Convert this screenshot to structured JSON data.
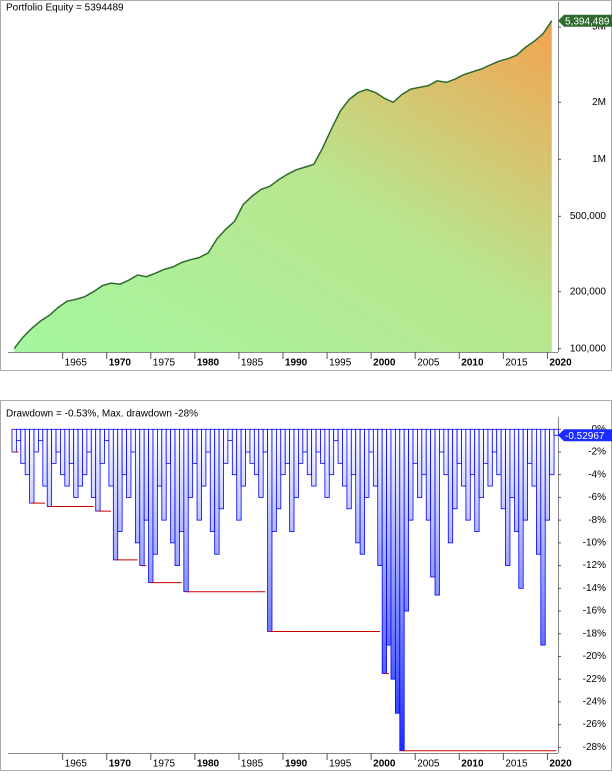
{
  "chart_data": [
    {
      "type": "area",
      "title": "Portfolio Equity = 5394489",
      "x": [
        1959.5,
        1960.5,
        1961.5,
        1962.5,
        1963.5,
        1964.5,
        1965.5,
        1966.5,
        1967.5,
        1968.5,
        1969.5,
        1970.5,
        1971.5,
        1972.5,
        1973.5,
        1974.5,
        1975.5,
        1976.5,
        1977.5,
        1978.5,
        1979.5,
        1980.5,
        1981.5,
        1982.5,
        1983.5,
        1984.5,
        1985.5,
        1986.5,
        1987.5,
        1988.5,
        1989.5,
        1990.5,
        1991.5,
        1992.5,
        1993.5,
        1994.5,
        1995.5,
        1996.5,
        1997.5,
        1998.5,
        1999.5,
        2000.5,
        2001.5,
        2002.5,
        2003.5,
        2004.5,
        2005.5,
        2006.5,
        2007.5,
        2008.5,
        2009.5,
        2010.5,
        2011.5,
        2012.5,
        2013.5,
        2014.5,
        2015.5,
        2016.5,
        2017.5,
        2018.5,
        2019.5,
        2020.5
      ],
      "values": [
        100000,
        115000,
        128000,
        140000,
        150000,
        165000,
        178000,
        182000,
        188000,
        200000,
        215000,
        222000,
        219000,
        230000,
        245000,
        240000,
        250000,
        262000,
        270000,
        285000,
        295000,
        303000,
        320000,
        380000,
        427000,
        470000,
        578000,
        640000,
        694000,
        720000,
        780000,
        833000,
        880000,
        910000,
        940000,
        1150000,
        1450000,
        1800000,
        2070000,
        2250000,
        2340000,
        2250000,
        2100000,
        2000000,
        2200000,
        2350000,
        2400000,
        2450000,
        2600000,
        2550000,
        2650000,
        2800000,
        2900000,
        3000000,
        3150000,
        3300000,
        3400000,
        3550000,
        3900000,
        4200000,
        4600000,
        5394489
      ],
      "color": "#2f6a2f",
      "log_scale": true,
      "xlim": [
        1958.8,
        2021.2
      ],
      "xticks": [
        1965,
        1970,
        1975,
        1980,
        1985,
        1990,
        1995,
        2000,
        2005,
        2010,
        2015,
        2020
      ],
      "ylim": [
        96000,
        6000000
      ],
      "yticks": [
        {
          "value": 100000,
          "label": "100,000"
        },
        {
          "value": 200000,
          "label": "200,000"
        },
        {
          "value": 500000,
          "label": "500,000"
        },
        {
          "value": 1000000,
          "label": "1M"
        },
        {
          "value": 2000000,
          "label": "2M"
        },
        {
          "value": 5000000,
          "label": "5M"
        }
      ],
      "last_value_label": "5,394,489"
    },
    {
      "type": "bar",
      "title": "Drawdown = -0.53%, Max. drawdown -28%",
      "x": [
        1959,
        1959.5,
        1960,
        1960.5,
        1961,
        1961.5,
        1962,
        1962.5,
        1963,
        1963.5,
        1964,
        1964.5,
        1965,
        1965.5,
        1966,
        1966.5,
        1967,
        1967.5,
        1968,
        1968.5,
        1969,
        1969.5,
        1970,
        1970.5,
        1971,
        1971.5,
        1972,
        1972.5,
        1973,
        1973.5,
        1974,
        1974.5,
        1975,
        1975.5,
        1976,
        1976.5,
        1977,
        1977.5,
        1978,
        1978.5,
        1979,
        1979.5,
        1980,
        1980.5,
        1981,
        1981.5,
        1982,
        1982.5,
        1983,
        1983.5,
        1984,
        1984.5,
        1985,
        1985.5,
        1986,
        1986.5,
        1987,
        1987.5,
        1988,
        1988.5,
        1989,
        1989.5,
        1990,
        1990.5,
        1991,
        1991.5,
        1992,
        1992.5,
        1993,
        1993.5,
        1994,
        1994.5,
        1995,
        1995.5,
        1996,
        1996.5,
        1997,
        1997.5,
        1998,
        1998.5,
        1999,
        1999.5,
        2000,
        2000.5,
        2001,
        2001.5,
        2002,
        2002.5,
        2003,
        2003.5,
        2004,
        2004.5,
        2005,
        2005.5,
        2006,
        2006.5,
        2007,
        2007.5,
        2008,
        2008.5,
        2009,
        2009.5,
        2010,
        2010.5,
        2011,
        2011.5,
        2012,
        2012.5,
        2013,
        2013.5,
        2014,
        2014.5,
        2015,
        2015.5,
        2016,
        2016.5,
        2017,
        2017.5,
        2018,
        2018.5,
        2019,
        2019.5,
        2020,
        2020.5,
        2021
      ],
      "values": [
        0,
        -2,
        -1,
        -3,
        -4,
        -6.5,
        -2,
        -1,
        -5,
        -6.8,
        -3,
        -2,
        -4,
        -5,
        -3,
        -6,
        -5,
        -4,
        -2,
        -6,
        -7.2,
        -3,
        -1,
        -5,
        -11.5,
        -9,
        -4,
        -6,
        -2,
        -10,
        -12,
        -8,
        -13.5,
        -11,
        -5,
        -8,
        -3,
        -10,
        -12,
        -9,
        -14.3,
        -6,
        -3,
        -8,
        -5,
        -2,
        -9,
        -11,
        -7,
        -3,
        -1,
        -4,
        -8,
        -5,
        -2,
        -3,
        -4,
        -6,
        -2,
        -17.8,
        -9,
        -7,
        -4,
        -3,
        -9,
        -6,
        -3,
        -2,
        -4,
        -5,
        -2,
        -3,
        -6,
        -4,
        -1,
        -3,
        -5,
        -7,
        -4,
        -10,
        -11,
        -6,
        -2,
        -5,
        -12,
        -21.5,
        -19,
        -22,
        -25,
        -28.3,
        -16,
        -8,
        -3,
        -6,
        -4,
        -8,
        -13,
        -14.6,
        -2,
        -4,
        -10,
        -7,
        -3,
        -5,
        -8,
        -4,
        -9,
        -6,
        -3,
        -5,
        -2,
        -4,
        -7,
        -12,
        -6,
        -9,
        -14,
        -8,
        -3,
        -5,
        -11,
        -19,
        -8,
        -4,
        -0.52967
      ],
      "color": "#0000ff",
      "max_line_color": "#cc0000",
      "xlim": [
        1958.8,
        2021.2
      ],
      "xticks": [
        1965,
        1970,
        1975,
        1980,
        1985,
        1990,
        1995,
        2000,
        2005,
        2010,
        2015,
        2020
      ],
      "ylim": [
        -28.5,
        0.2
      ],
      "yticks": [
        {
          "value": 0,
          "label": "0%"
        },
        {
          "value": -2,
          "label": "-2%"
        },
        {
          "value": -4,
          "label": "-4%"
        },
        {
          "value": -6,
          "label": "-6%"
        },
        {
          "value": -8,
          "label": "-8%"
        },
        {
          "value": -10,
          "label": "-10%"
        },
        {
          "value": -12,
          "label": "-12%"
        },
        {
          "value": -14,
          "label": "-14%"
        },
        {
          "value": -16,
          "label": "-16%"
        },
        {
          "value": -18,
          "label": "-18%"
        },
        {
          "value": -20,
          "label": "-20%"
        },
        {
          "value": -22,
          "label": "-22%"
        },
        {
          "value": -24,
          "label": "-24%"
        },
        {
          "value": -26,
          "label": "-26%"
        },
        {
          "value": -28,
          "label": "-28%"
        }
      ],
      "last_value_label": "-0.52967"
    }
  ]
}
